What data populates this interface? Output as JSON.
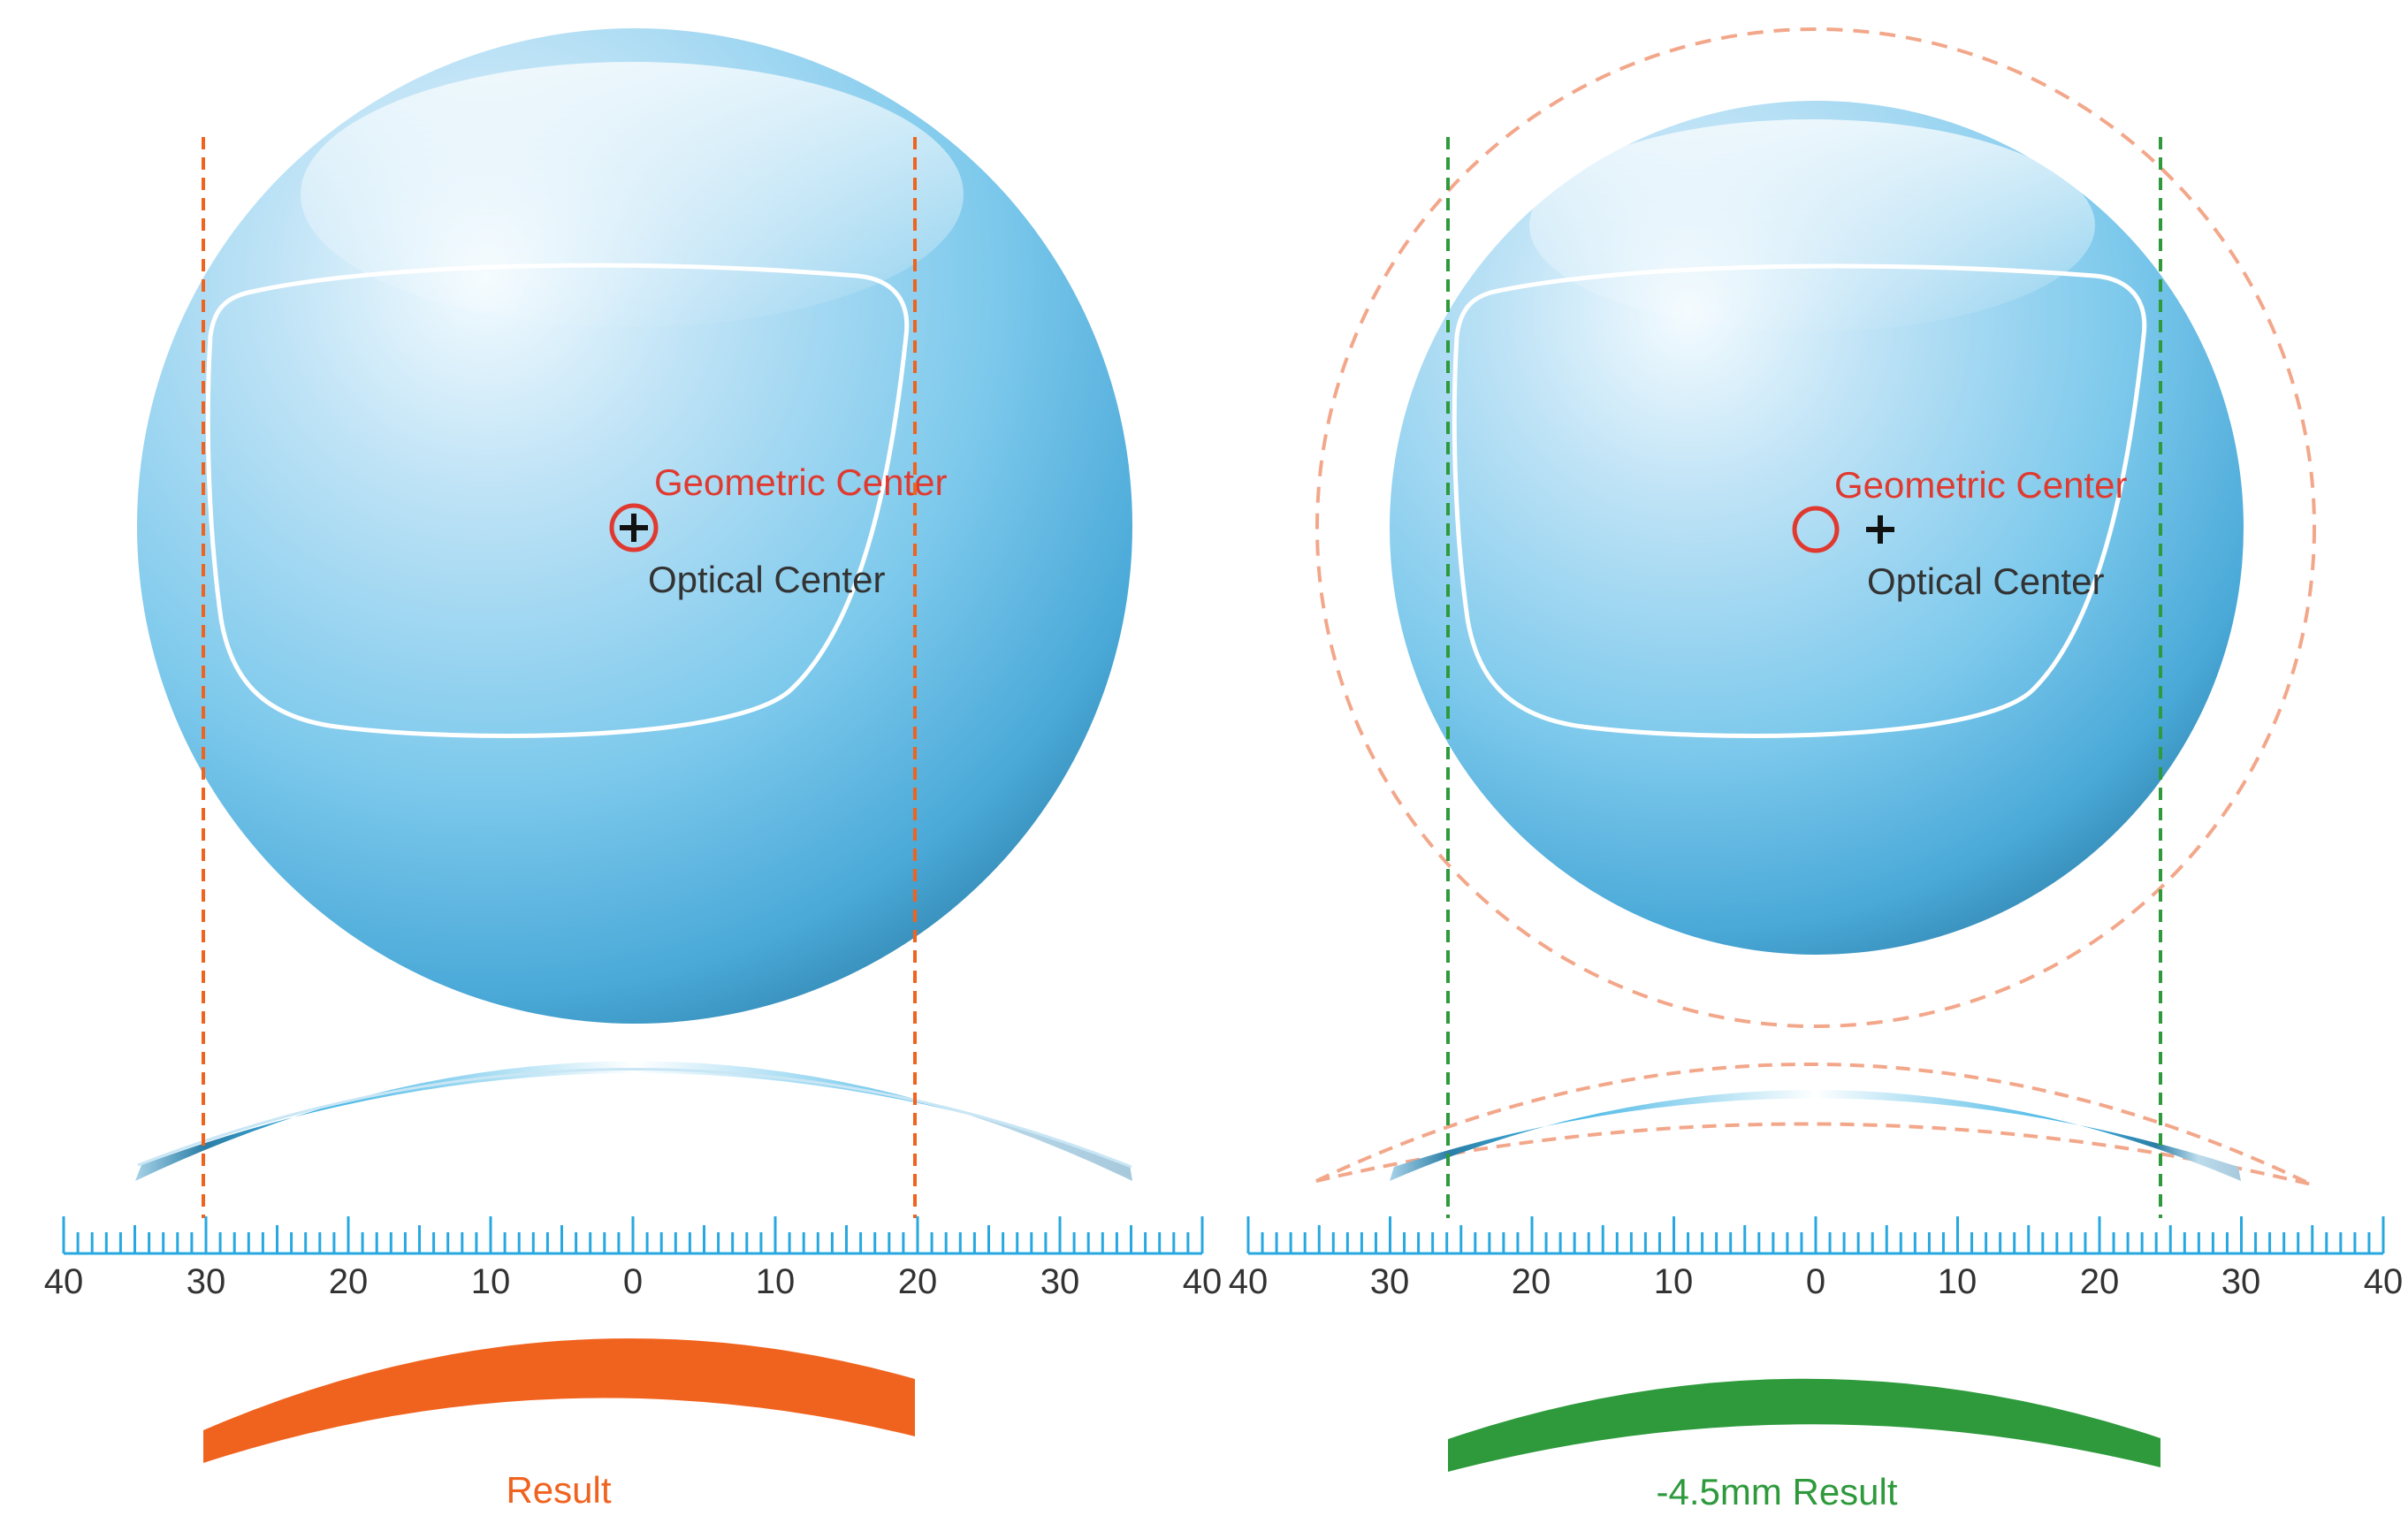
{
  "colors": {
    "orange": "#f0631f",
    "green": "#2e9a3c",
    "red": "#e03a30",
    "ruler": "#28a8e0",
    "lens_light": "#d7eefa",
    "lens_mid": "#7cc8ec",
    "lens_dark": "#2d7fa8",
    "text_dark": "#333333",
    "dashed_ghost": "#f3a78a"
  },
  "panels": [
    {
      "id": "left",
      "geometric_center_label": "Geometric Center",
      "optical_center_label": "Optical Center",
      "ruler_ticks": [
        "40",
        "30",
        "20",
        "10",
        "0",
        "10",
        "20",
        "30",
        "40"
      ],
      "cut_line_color": "orange",
      "result_label": "Result",
      "result_color": "orange"
    },
    {
      "id": "right",
      "geometric_center_label": "Geometric Center",
      "optical_center_label": "Optical Center",
      "ruler_ticks": [
        "40",
        "30",
        "20",
        "10",
        "0",
        "10",
        "20",
        "30",
        "40"
      ],
      "cut_line_color": "green",
      "result_label": "-4.5mm Result",
      "result_color": "green"
    }
  ],
  "icons": {
    "optical_center_marker": "plus-icon",
    "geometric_center_marker": "circle-icon"
  }
}
